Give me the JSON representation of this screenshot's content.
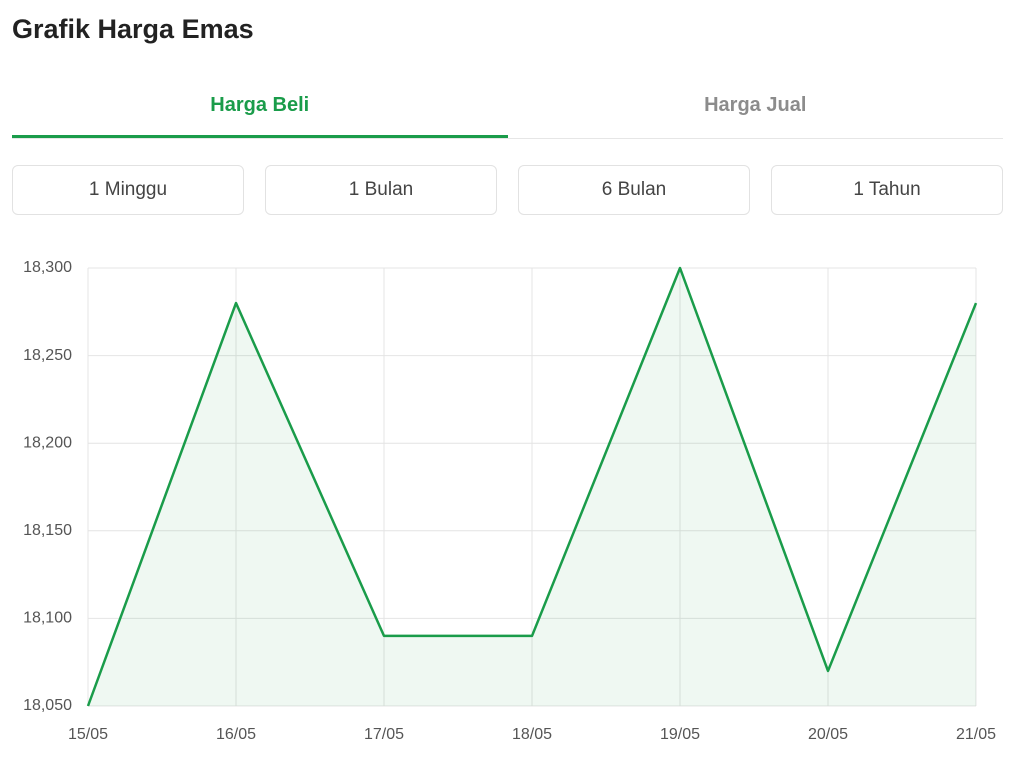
{
  "header": {
    "title": "Grafik Harga Emas"
  },
  "tabs": [
    "Harga Beli",
    "Harga Jual"
  ],
  "periods": [
    "1 Minggu",
    "1 Bulan",
    "6 Bulan",
    "1 Tahun"
  ],
  "chart_data": {
    "type": "area",
    "categories": [
      "15/05",
      "16/05",
      "17/05",
      "18/05",
      "19/05",
      "20/05",
      "21/05"
    ],
    "values": [
      18050,
      18280,
      18090,
      18090,
      18300,
      18070,
      18280
    ],
    "color": "#1a9c4a",
    "ylim": [
      18050,
      18300
    ],
    "yticks": [
      {
        "value": 18050,
        "label": "18,050"
      },
      {
        "value": 18100,
        "label": "18,100"
      },
      {
        "value": 18150,
        "label": "18,150"
      },
      {
        "value": 18200,
        "label": "18,200"
      },
      {
        "value": 18250,
        "label": "18,250"
      },
      {
        "value": 18300,
        "label": "18,300"
      }
    ],
    "grid": true
  }
}
